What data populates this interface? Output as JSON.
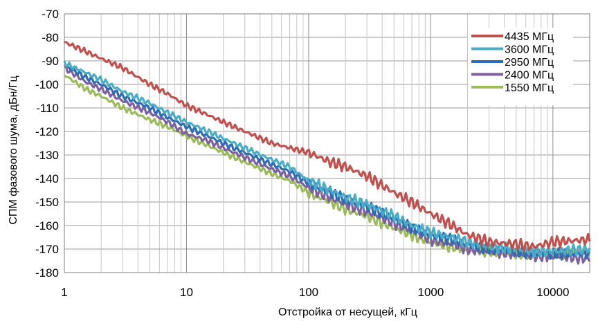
{
  "chart_data": {
    "type": "line",
    "xlabel": "Отстройка от несущей, кГц",
    "ylabel": "СПМ фазового шума, дБн/Гц",
    "xscale": "log",
    "xlim": [
      1,
      20000
    ],
    "ylim": [
      -180,
      -70
    ],
    "xticks": [
      1,
      10,
      100,
      1000,
      10000
    ],
    "xtick_labels": [
      "1",
      "10",
      "100",
      "1000",
      "10000"
    ],
    "yticks": [
      -180,
      -170,
      -160,
      -150,
      -140,
      -130,
      -120,
      -110,
      -100,
      -90,
      -80,
      -70
    ],
    "ytick_labels": [
      "-180",
      "-170",
      "-160",
      "-150",
      "-140",
      "-130",
      "-120",
      "-110",
      "-100",
      "-90",
      "-80",
      "-70"
    ],
    "grid": true,
    "legend_position": "top-right",
    "series": [
      {
        "name": "4435 МГц",
        "color": "#c0504d",
        "x": [
          1,
          1.5,
          2,
          3,
          5,
          7,
          10,
          15,
          20,
          30,
          50,
          70,
          100,
          150,
          200,
          300,
          500,
          700,
          1000,
          1500,
          2000,
          3000,
          5000,
          7000,
          10000,
          20000
        ],
        "y": [
          -82,
          -86,
          -89,
          -93,
          -100,
          -104,
          -109,
          -113,
          -116,
          -120,
          -125,
          -127,
          -129,
          -133,
          -135,
          -139,
          -146,
          -150,
          -155,
          -160,
          -164,
          -167,
          -168,
          -169,
          -167,
          -166
        ]
      },
      {
        "name": "3600 МГц",
        "color": "#4bacc6",
        "x": [
          1,
          1.5,
          2,
          3,
          5,
          7,
          10,
          15,
          20,
          30,
          50,
          70,
          100,
          150,
          200,
          300,
          500,
          700,
          1000,
          1500,
          2000,
          3000,
          5000,
          7000,
          10000,
          20000
        ],
        "y": [
          -91,
          -95,
          -98,
          -103,
          -108,
          -112,
          -116,
          -120,
          -123,
          -127,
          -132,
          -135,
          -141,
          -145,
          -148,
          -151,
          -156,
          -160,
          -163,
          -165,
          -167,
          -169,
          -170,
          -171,
          -171,
          -170
        ]
      },
      {
        "name": "2950 МГц",
        "color": "#2e6db4",
        "x": [
          1,
          1.5,
          2,
          3,
          5,
          7,
          10,
          15,
          20,
          30,
          50,
          70,
          100,
          150,
          200,
          300,
          500,
          700,
          1000,
          1500,
          2000,
          3000,
          5000,
          7000,
          10000,
          20000
        ],
        "y": [
          -92,
          -97,
          -100,
          -105,
          -110,
          -114,
          -118,
          -122,
          -125,
          -129,
          -134,
          -137,
          -142,
          -146,
          -149,
          -152,
          -157,
          -161,
          -164,
          -166,
          -168,
          -170,
          -171,
          -172,
          -172,
          -172
        ]
      },
      {
        "name": "2400 МГц",
        "color": "#7d60a0",
        "x": [
          1,
          1.5,
          2,
          3,
          5,
          7,
          10,
          15,
          20,
          30,
          50,
          70,
          100,
          150,
          200,
          300,
          500,
          700,
          1000,
          1500,
          2000,
          3000,
          5000,
          7000,
          10000,
          20000
        ],
        "y": [
          -93,
          -99,
          -102,
          -107,
          -112,
          -116,
          -121,
          -124,
          -127,
          -131,
          -136,
          -139,
          -144,
          -148,
          -151,
          -154,
          -159,
          -162,
          -166,
          -168,
          -170,
          -171,
          -172,
          -173,
          -173,
          -174
        ]
      },
      {
        "name": "1550 МГц",
        "color": "#9bbb59",
        "x": [
          1,
          1.5,
          2,
          3,
          5,
          7,
          10,
          15,
          20,
          30,
          50,
          70,
          100,
          150,
          200,
          300,
          500,
          700,
          1000,
          1500,
          2000,
          3000,
          5000,
          7000,
          10000,
          20000
        ],
        "y": [
          -96,
          -102,
          -105,
          -110,
          -115,
          -118,
          -122,
          -126,
          -129,
          -133,
          -138,
          -141,
          -146,
          -150,
          -153,
          -156,
          -161,
          -164,
          -167,
          -169,
          -170,
          -171,
          -172,
          -172,
          -172,
          -171
        ]
      }
    ]
  }
}
